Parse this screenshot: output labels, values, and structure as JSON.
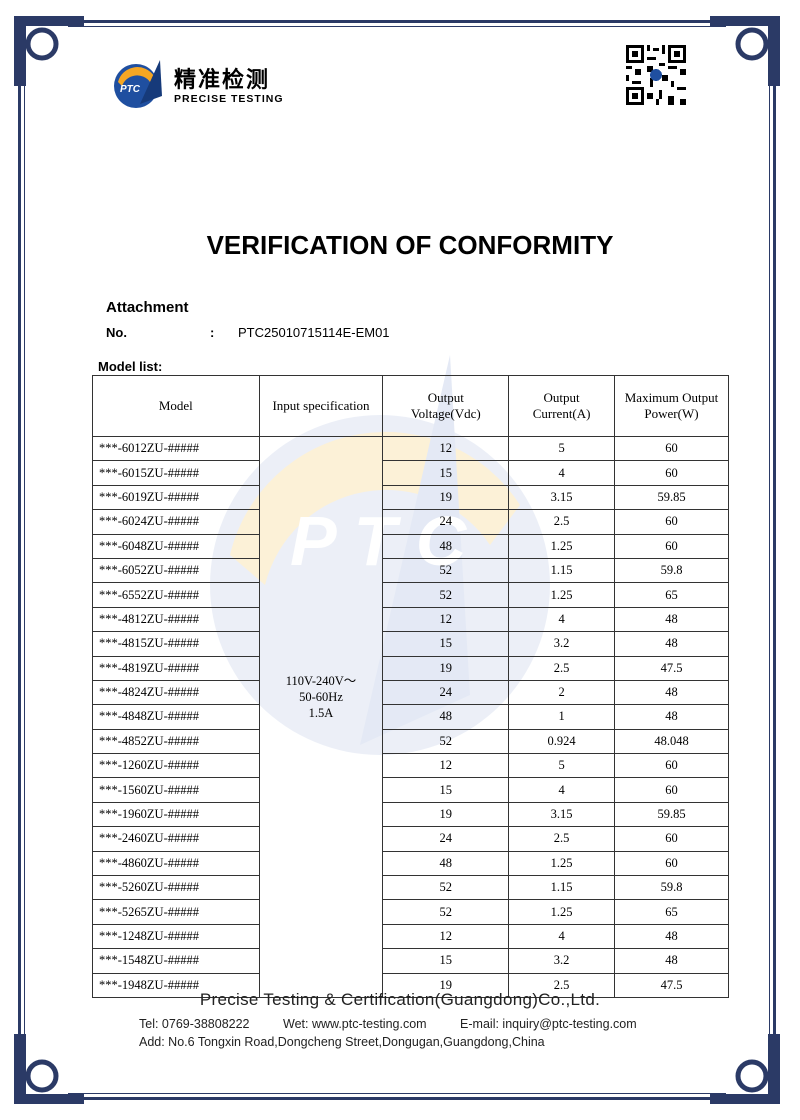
{
  "header": {
    "logo_cn": "精准检测",
    "logo_en": "PRECISE TESTING",
    "logo_mark": "PTC"
  },
  "title": "VERIFICATION OF CONFORMITY",
  "attachment": {
    "heading": "Attachment",
    "no_label": "No.",
    "colon": ":",
    "no_value": "PTC25010715114E-EM01"
  },
  "model_list": {
    "label": "Model list:",
    "columns": [
      "Model",
      "Input specification",
      "Output Voltage(Vdc)",
      "Output Current(A)",
      "Maximum Output Power(W)"
    ],
    "input_spec": [
      "110V-240V～",
      "50-60Hz",
      "1.5A"
    ],
    "rows": [
      [
        "***-6012ZU-#####",
        "12",
        "5",
        "60"
      ],
      [
        "***-6015ZU-#####",
        "15",
        "4",
        "60"
      ],
      [
        "***-6019ZU-#####",
        "19",
        "3.15",
        "59.85"
      ],
      [
        "***-6024ZU-#####",
        "24",
        "2.5",
        "60"
      ],
      [
        "***-6048ZU-#####",
        "48",
        "1.25",
        "60"
      ],
      [
        "***-6052ZU-#####",
        "52",
        "1.15",
        "59.8"
      ],
      [
        "***-6552ZU-#####",
        "52",
        "1.25",
        "65"
      ],
      [
        "***-4812ZU-#####",
        "12",
        "4",
        "48"
      ],
      [
        "***-4815ZU-#####",
        "15",
        "3.2",
        "48"
      ],
      [
        "***-4819ZU-#####",
        "19",
        "2.5",
        "47.5"
      ],
      [
        "***-4824ZU-#####",
        "24",
        "2",
        "48"
      ],
      [
        "***-4848ZU-#####",
        "48",
        "1",
        "48"
      ],
      [
        "***-4852ZU-#####",
        "52",
        "0.924",
        "48.048"
      ],
      [
        "***-1260ZU-#####",
        "12",
        "5",
        "60"
      ],
      [
        "***-1560ZU-#####",
        "15",
        "4",
        "60"
      ],
      [
        "***-1960ZU-#####",
        "19",
        "3.15",
        "59.85"
      ],
      [
        "***-2460ZU-#####",
        "24",
        "2.5",
        "60"
      ],
      [
        "***-4860ZU-#####",
        "48",
        "1.25",
        "60"
      ],
      [
        "***-5260ZU-#####",
        "52",
        "1.15",
        "59.8"
      ],
      [
        "***-5265ZU-#####",
        "52",
        "1.25",
        "65"
      ],
      [
        "***-1248ZU-#####",
        "12",
        "4",
        "48"
      ],
      [
        "***-1548ZU-#####",
        "15",
        "3.2",
        "48"
      ],
      [
        "***-1948ZU-#####",
        "19",
        "2.5",
        "47.5"
      ]
    ]
  },
  "footer": {
    "company": "Precise Testing & Certification(Guangdong)Co.,Ltd.",
    "tel": "Tel: 0769-38808222",
    "web": "Wet: www.ptc-testing.com",
    "email": "E-mail: inquiry@ptc-testing.com",
    "address": "Add: No.6 Tongxin Road,Dongcheng Street,Dongugan,Guangdong,China"
  },
  "colors": {
    "frame": "#2b3a66",
    "logo_blue": "#1f4fa0",
    "logo_orange": "#f5a623"
  }
}
